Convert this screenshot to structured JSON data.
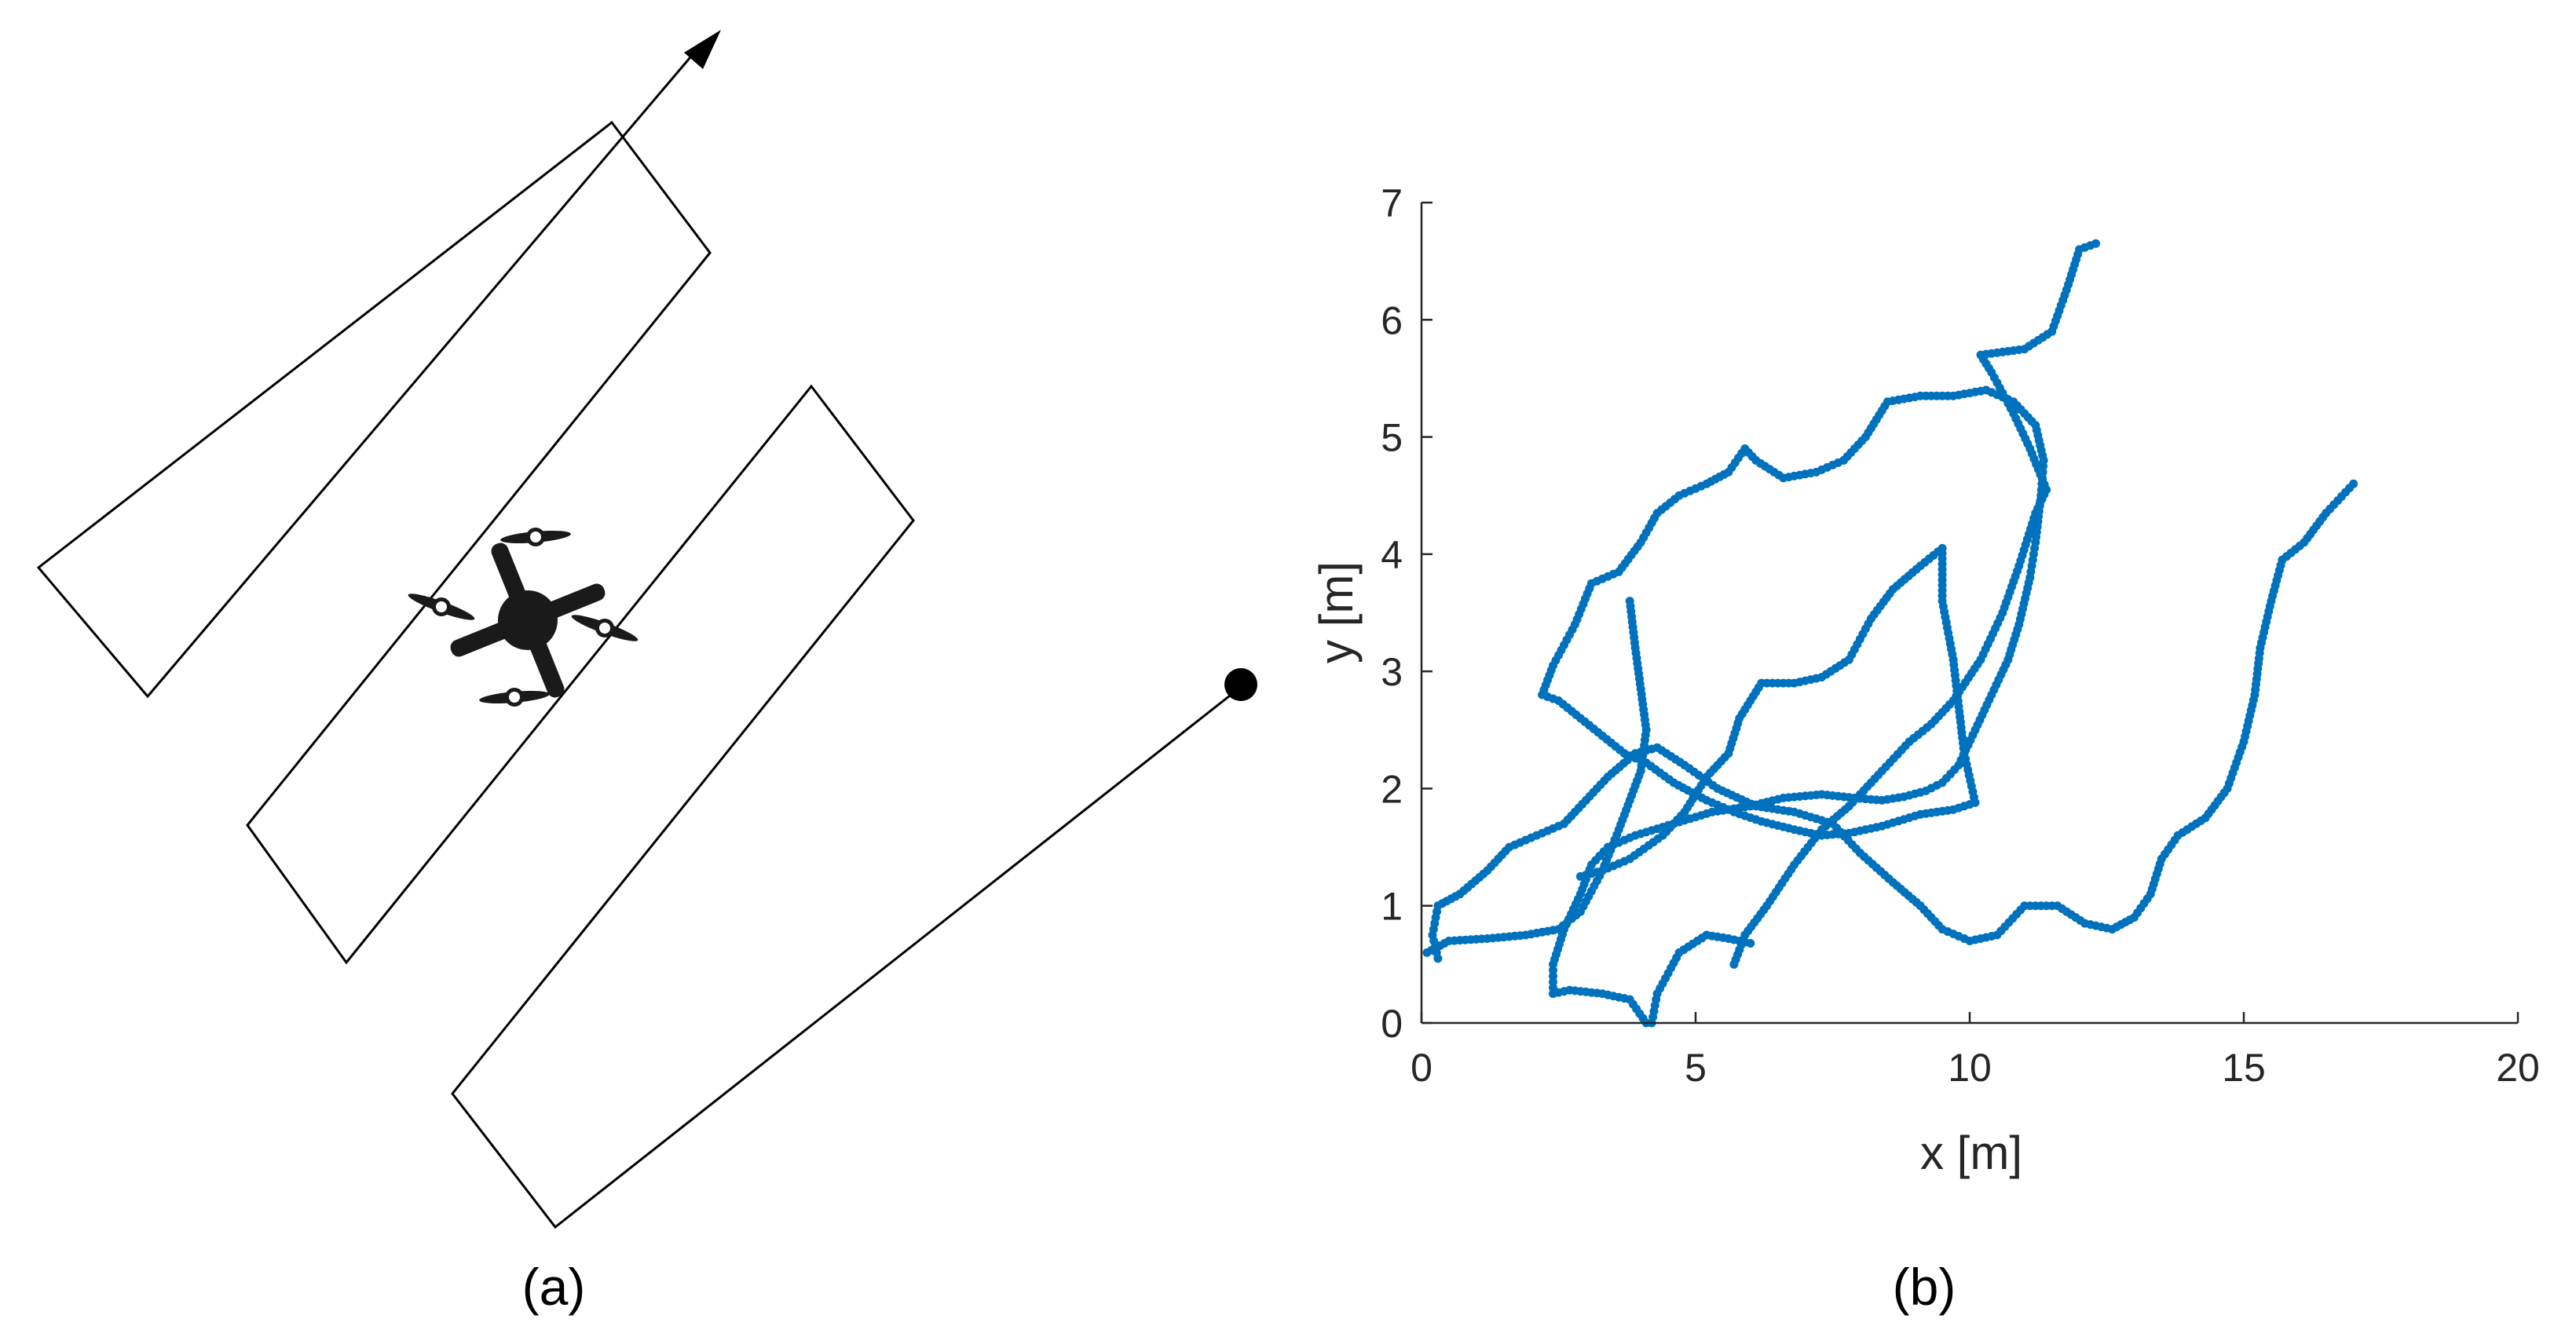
{
  "panels": {
    "a": {
      "label": "(a)"
    },
    "b": {
      "label": "(b)"
    }
  },
  "icons": [
    "quadrotor-drone-icon",
    "start-point-dot-icon",
    "arrowhead-icon"
  ],
  "colors": {
    "trajectory": "#0072BD",
    "path": "#000000",
    "axis": "#262626"
  },
  "chart_data": {
    "type": "scatter",
    "title": "",
    "xlabel": "x [m]",
    "ylabel": "y [m]",
    "xlim": [
      0,
      20
    ],
    "ylim": [
      0,
      7
    ],
    "xticks": [
      0,
      5,
      10,
      15,
      20
    ],
    "yticks": [
      0,
      1,
      2,
      3,
      4,
      5,
      6,
      7
    ],
    "grid": false,
    "legend": "none",
    "series": [
      {
        "color": "#0072BD",
        "points": [
          [
            4.1,
            0.0
          ],
          [
            3.8,
            0.2
          ],
          [
            3.3,
            0.25
          ],
          [
            2.7,
            0.28
          ],
          [
            2.4,
            0.25
          ],
          [
            2.4,
            0.5
          ],
          [
            2.6,
            0.8
          ],
          [
            2.9,
            1.1
          ],
          [
            3.1,
            1.35
          ],
          [
            3.4,
            1.5
          ],
          [
            3.9,
            1.6
          ],
          [
            4.6,
            1.7
          ],
          [
            5.3,
            1.8
          ],
          [
            6.0,
            1.85
          ],
          [
            6.6,
            1.92
          ],
          [
            7.3,
            1.95
          ],
          [
            7.9,
            1.92
          ],
          [
            8.4,
            1.9
          ],
          [
            8.8,
            1.93
          ],
          [
            9.2,
            1.98
          ],
          [
            9.5,
            2.05
          ],
          [
            9.8,
            2.2
          ],
          [
            10.1,
            2.5
          ],
          [
            10.4,
            2.8
          ],
          [
            10.7,
            3.1
          ],
          [
            10.9,
            3.4
          ],
          [
            11.1,
            3.8
          ],
          [
            11.2,
            4.1
          ],
          [
            11.3,
            4.5
          ],
          [
            11.35,
            4.8
          ],
          [
            11.2,
            5.1
          ],
          [
            10.8,
            5.3
          ],
          [
            10.3,
            5.4
          ],
          [
            9.7,
            5.35
          ],
          [
            9.1,
            5.35
          ],
          [
            8.5,
            5.3
          ],
          [
            8.1,
            5.0
          ],
          [
            7.7,
            4.8
          ],
          [
            7.2,
            4.7
          ],
          [
            6.6,
            4.65
          ],
          [
            6.1,
            4.8
          ],
          [
            5.9,
            4.9
          ],
          [
            5.6,
            4.7
          ],
          [
            5.2,
            4.6
          ],
          [
            4.7,
            4.5
          ],
          [
            4.3,
            4.35
          ],
          [
            4.0,
            4.1
          ],
          [
            3.6,
            3.85
          ],
          [
            3.1,
            3.75
          ],
          [
            2.8,
            3.4
          ],
          [
            2.4,
            3.05
          ],
          [
            2.2,
            2.8
          ],
          [
            2.5,
            2.75
          ],
          [
            2.9,
            2.6
          ],
          [
            3.3,
            2.45
          ],
          [
            3.7,
            2.3
          ],
          [
            4.1,
            2.22
          ],
          [
            4.6,
            2.05
          ],
          [
            5.2,
            1.9
          ],
          [
            5.7,
            1.8
          ],
          [
            6.2,
            1.72
          ],
          [
            6.8,
            1.65
          ],
          [
            7.3,
            1.6
          ],
          [
            7.8,
            1.62
          ],
          [
            8.4,
            1.68
          ],
          [
            9.1,
            1.78
          ],
          [
            9.7,
            1.82
          ],
          [
            10.1,
            1.88
          ],
          [
            9.9,
            2.3
          ],
          [
            9.8,
            2.7
          ],
          [
            9.7,
            3.1
          ],
          [
            9.5,
            3.6
          ],
          [
            9.5,
            4.05
          ],
          [
            9.1,
            3.9
          ],
          [
            8.6,
            3.7
          ],
          [
            8.2,
            3.45
          ],
          [
            7.8,
            3.1
          ],
          [
            7.3,
            2.95
          ],
          [
            6.8,
            2.9
          ],
          [
            6.2,
            2.9
          ],
          [
            5.8,
            2.6
          ],
          [
            5.6,
            2.3
          ],
          [
            5.2,
            2.1
          ],
          [
            4.8,
            1.8
          ],
          [
            4.4,
            1.6
          ],
          [
            3.8,
            1.4
          ],
          [
            3.3,
            1.3
          ],
          [
            2.9,
            1.25
          ]
        ]
      },
      {
        "color": "#0072BD",
        "points": [
          [
            0.3,
            0.55
          ],
          [
            0.2,
            0.75
          ],
          [
            0.3,
            1.0
          ],
          [
            0.7,
            1.1
          ],
          [
            1.2,
            1.3
          ],
          [
            1.6,
            1.5
          ],
          [
            2.1,
            1.6
          ],
          [
            2.6,
            1.7
          ],
          [
            3.0,
            1.9
          ],
          [
            3.4,
            2.1
          ],
          [
            3.9,
            2.3
          ],
          [
            4.3,
            2.35
          ],
          [
            4.8,
            2.2
          ],
          [
            5.4,
            2.0
          ],
          [
            6.1,
            1.85
          ],
          [
            6.8,
            1.8
          ],
          [
            7.5,
            1.7
          ],
          [
            8.0,
            1.45
          ],
          [
            8.6,
            1.2
          ],
          [
            9.1,
            1.0
          ],
          [
            9.5,
            0.8
          ],
          [
            10.0,
            0.7
          ],
          [
            10.5,
            0.75
          ],
          [
            11.0,
            1.0
          ],
          [
            11.6,
            1.0
          ],
          [
            12.1,
            0.85
          ],
          [
            12.6,
            0.8
          ],
          [
            13.0,
            0.9
          ],
          [
            13.3,
            1.1
          ],
          [
            13.5,
            1.4
          ],
          [
            13.8,
            1.6
          ],
          [
            14.3,
            1.75
          ],
          [
            14.7,
            2.0
          ],
          [
            15.0,
            2.4
          ],
          [
            15.2,
            2.8
          ],
          [
            15.3,
            3.2
          ],
          [
            15.5,
            3.6
          ],
          [
            15.7,
            3.95
          ],
          [
            16.1,
            4.1
          ],
          [
            16.5,
            4.35
          ],
          [
            17.0,
            4.6
          ]
        ]
      },
      {
        "color": "#0072BD",
        "points": [
          [
            5.7,
            0.5
          ],
          [
            5.9,
            0.75
          ],
          [
            6.3,
            1.0
          ],
          [
            6.8,
            1.35
          ],
          [
            7.3,
            1.65
          ],
          [
            7.8,
            1.85
          ],
          [
            8.4,
            2.15
          ],
          [
            8.9,
            2.4
          ],
          [
            9.3,
            2.55
          ],
          [
            9.7,
            2.75
          ],
          [
            10.2,
            3.1
          ],
          [
            10.6,
            3.5
          ],
          [
            10.9,
            3.9
          ],
          [
            11.2,
            4.35
          ],
          [
            11.4,
            4.55
          ],
          [
            11.1,
            4.9
          ],
          [
            10.8,
            5.2
          ],
          [
            10.4,
            5.55
          ],
          [
            10.2,
            5.7
          ],
          [
            11.0,
            5.75
          ],
          [
            11.5,
            5.9
          ],
          [
            11.8,
            6.3
          ],
          [
            12.0,
            6.6
          ],
          [
            12.3,
            6.65
          ]
        ]
      },
      {
        "color": "#0072BD",
        "points": [
          [
            0.1,
            0.6
          ],
          [
            0.5,
            0.7
          ],
          [
            1.2,
            0.72
          ],
          [
            1.9,
            0.75
          ],
          [
            2.5,
            0.8
          ],
          [
            2.9,
            0.95
          ],
          [
            3.3,
            1.3
          ],
          [
            3.6,
            1.65
          ],
          [
            3.8,
            1.9
          ],
          [
            4.0,
            2.15
          ],
          [
            4.1,
            2.5
          ],
          [
            4.0,
            2.85
          ],
          [
            3.9,
            3.2
          ],
          [
            3.8,
            3.6
          ]
        ]
      },
      {
        "color": "#0072BD",
        "points": [
          [
            4.2,
            0.0
          ],
          [
            4.3,
            0.25
          ],
          [
            4.7,
            0.6
          ],
          [
            5.2,
            0.75
          ],
          [
            5.6,
            0.72
          ],
          [
            6.0,
            0.68
          ]
        ]
      }
    ]
  }
}
